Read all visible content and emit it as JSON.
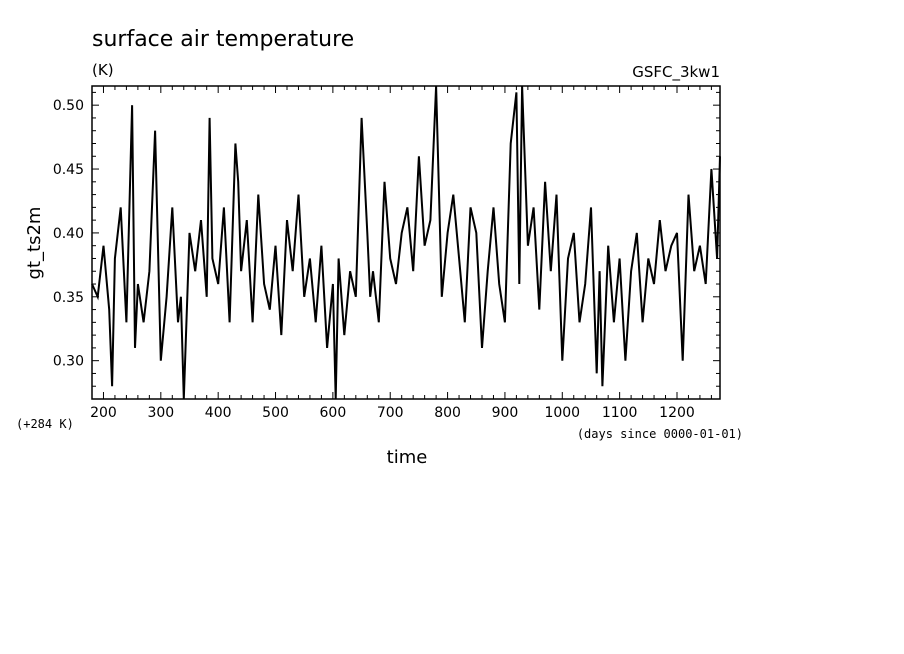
{
  "chart_data": {
    "type": "line",
    "title": "surface air temperature",
    "units": "(K)",
    "source_label": "GSFC_3kw1",
    "xlabel": "time",
    "x_units": "(days since 0000-01-01)",
    "ylabel": "gt_ts2m",
    "y_offset_label": "(+284 K)",
    "xlim": [
      180,
      1275
    ],
    "ylim": [
      0.27,
      0.515
    ],
    "x_ticks": [
      200,
      300,
      400,
      500,
      600,
      700,
      800,
      900,
      1000,
      1100,
      1200
    ],
    "y_ticks": [
      0.3,
      0.35,
      0.4,
      0.45,
      0.5
    ],
    "y_tick_labels": [
      "0.30",
      "0.35",
      "0.40",
      "0.45",
      "0.50"
    ],
    "grid": false,
    "line_color": "#000000",
    "series": [
      {
        "x": [
          180,
          190,
          200,
          210,
          215,
          220,
          230,
          240,
          250,
          255,
          260,
          270,
          280,
          290,
          300,
          310,
          320,
          330,
          335,
          340,
          350,
          360,
          370,
          380,
          385,
          390,
          400,
          410,
          420,
          430,
          435,
          440,
          450,
          460,
          470,
          480,
          490,
          500,
          510,
          520,
          530,
          540,
          550,
          560,
          570,
          580,
          590,
          600,
          605,
          610,
          620,
          630,
          640,
          650,
          660,
          665,
          670,
          680,
          690,
          700,
          710,
          720,
          730,
          740,
          750,
          760,
          770,
          780,
          790,
          800,
          810,
          820,
          830,
          840,
          850,
          860,
          870,
          880,
          890,
          900,
          910,
          920,
          925,
          930,
          940,
          950,
          960,
          970,
          980,
          990,
          1000,
          1010,
          1020,
          1030,
          1040,
          1050,
          1060,
          1065,
          1070,
          1080,
          1090,
          1100,
          1110,
          1120,
          1130,
          1140,
          1150,
          1160,
          1170,
          1180,
          1190,
          1200,
          1210,
          1220,
          1230,
          1240,
          1250,
          1260,
          1270,
          1275
        ],
        "y": [
          0.36,
          0.35,
          0.39,
          0.34,
          0.28,
          0.38,
          0.42,
          0.33,
          0.5,
          0.31,
          0.36,
          0.33,
          0.37,
          0.48,
          0.3,
          0.35,
          0.42,
          0.33,
          0.35,
          0.27,
          0.4,
          0.37,
          0.41,
          0.35,
          0.49,
          0.38,
          0.36,
          0.42,
          0.33,
          0.47,
          0.44,
          0.37,
          0.41,
          0.33,
          0.43,
          0.36,
          0.34,
          0.39,
          0.32,
          0.41,
          0.37,
          0.43,
          0.35,
          0.38,
          0.33,
          0.39,
          0.31,
          0.36,
          0.27,
          0.38,
          0.32,
          0.37,
          0.35,
          0.49,
          0.4,
          0.35,
          0.37,
          0.33,
          0.44,
          0.38,
          0.36,
          0.4,
          0.42,
          0.37,
          0.46,
          0.39,
          0.41,
          0.52,
          0.35,
          0.4,
          0.43,
          0.38,
          0.33,
          0.42,
          0.4,
          0.31,
          0.37,
          0.42,
          0.36,
          0.33,
          0.47,
          0.51,
          0.36,
          0.52,
          0.39,
          0.42,
          0.34,
          0.44,
          0.37,
          0.43,
          0.3,
          0.38,
          0.4,
          0.33,
          0.36,
          0.42,
          0.29,
          0.37,
          0.28,
          0.39,
          0.33,
          0.38,
          0.3,
          0.37,
          0.4,
          0.33,
          0.38,
          0.36,
          0.41,
          0.37,
          0.39,
          0.4,
          0.3,
          0.43,
          0.37,
          0.39,
          0.36,
          0.45,
          0.38,
          0.46
        ]
      }
    ]
  }
}
